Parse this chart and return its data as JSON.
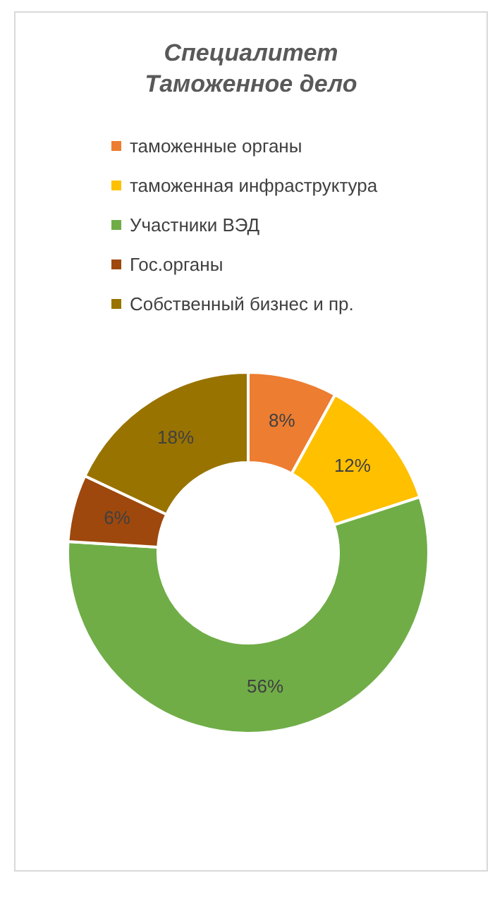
{
  "chart_data": {
    "type": "donut",
    "title": "Специалитет\nТаможенное дело",
    "categories": [
      "таможенные органы",
      "таможенная инфраструктура",
      "Участники ВЭД",
      "Гос.органы",
      "Собственный бизнес и пр."
    ],
    "values": [
      8,
      12,
      56,
      6,
      18
    ],
    "colors": [
      "#ed7d31",
      "#ffc000",
      "#70ad47",
      "#9e480e",
      "#997300"
    ],
    "value_labels": [
      "8%",
      "12%",
      "56%",
      "6%",
      "18%"
    ],
    "legend": "top"
  }
}
